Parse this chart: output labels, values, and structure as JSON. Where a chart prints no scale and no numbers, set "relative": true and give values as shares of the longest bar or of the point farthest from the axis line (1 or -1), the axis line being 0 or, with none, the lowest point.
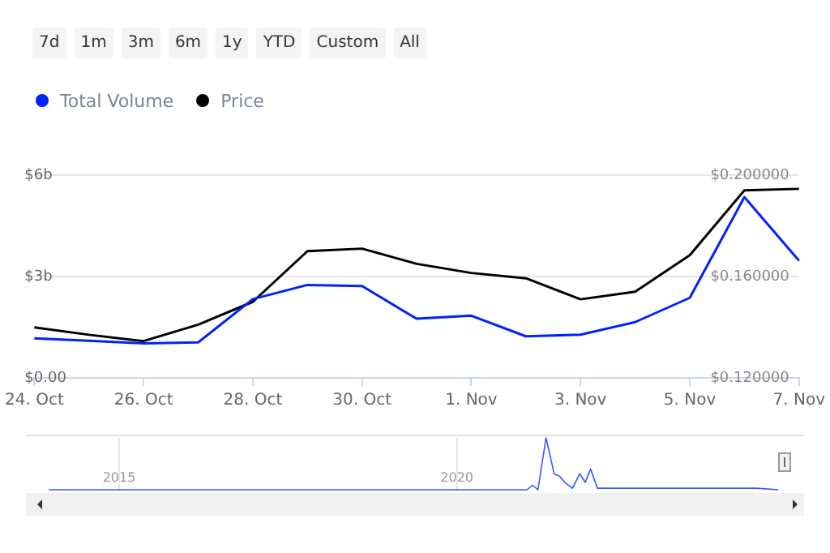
{
  "chart_data": [
    {
      "type": "line",
      "categories": [
        "24. Oct",
        null,
        "26. Oct",
        null,
        "28. Oct",
        null,
        "30. Oct",
        null,
        "1. Nov",
        null,
        "3. Nov",
        null,
        "5. Nov",
        null,
        "7. Nov"
      ],
      "series": [
        {
          "name": "Total Volume",
          "color": "#0022ff",
          "values": [
            1.17,
            1.1,
            1.02,
            1.05,
            2.33,
            2.75,
            2.72,
            1.75,
            1.84,
            1.23,
            1.28,
            1.65,
            2.37,
            5.35,
            3.47
          ]
        },
        {
          "name": "Price",
          "color": "#000000",
          "axis": "y2",
          "values": [
            0.1399,
            0.137,
            0.1345,
            0.141,
            0.15,
            0.17,
            0.171,
            0.165,
            0.1614,
            0.1593,
            0.151,
            0.154,
            0.1684,
            0.194,
            0.1946
          ]
        }
      ],
      "ylim": [
        0,
        6
      ],
      "yticks": [
        {
          "value": 0,
          "label": "$0.00"
        },
        {
          "value": 3,
          "label": "$3b"
        },
        {
          "value": 6,
          "label": "$6b"
        }
      ],
      "y2lim": [
        0.12,
        0.2
      ],
      "y2ticks": [
        {
          "value": 0.12,
          "label": "$0.120000"
        },
        {
          "value": 0.16,
          "label": "$0.160000"
        },
        {
          "value": 0.2,
          "label": "$0.200000"
        }
      ],
      "grid": "y",
      "legend": "top left",
      "marker": "none",
      "line_style": "solid",
      "annotations": [
        "7d",
        "1m",
        "3m",
        "6m",
        "1y",
        "YTD",
        "Custom",
        "All"
      ]
    },
    {
      "type": "line",
      "relative": true,
      "series": [
        {
          "color": "#3355ff",
          "x": [
            2013.96,
            2021.04,
            2021.12,
            2021.2,
            2021.32,
            2021.44,
            2021.52,
            2021.6,
            2021.71,
            2021.82,
            2021.9,
            2021.98,
            2022.08,
            2022.84,
            2023.64,
            2024.44,
            2024.76
          ],
          "values": [
            0,
            0,
            0.09,
            0,
            1,
            0.31,
            0.26,
            0.14,
            0.03,
            0.31,
            0.14,
            0.4,
            0.03,
            0.03,
            0.03,
            0.03,
            0
          ]
        }
      ],
      "xlim": [
        2013.62,
        2025.14
      ],
      "xticks": [
        2015,
        2020
      ],
      "grid": "x",
      "tick_labels": "x",
      "marker": "none",
      "line_style": "solid"
    }
  ]
}
